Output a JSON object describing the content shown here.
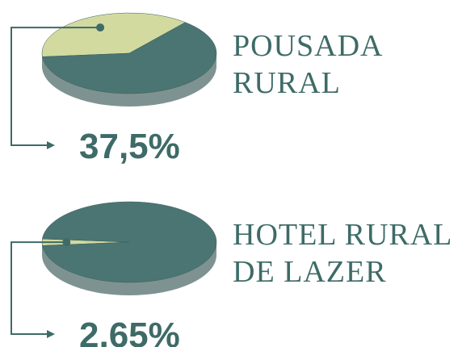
{
  "chart_data": [
    {
      "type": "pie",
      "title": "POUSADA RURAL",
      "values": [
        37.5,
        62.5
      ],
      "value_labels": [
        "37,5%",
        null
      ],
      "colors": [
        "#d2daa0",
        "#4b7572"
      ]
    },
    {
      "type": "pie",
      "title": "HOTEL RURAL DE LAZER",
      "values": [
        2.65,
        97.35
      ],
      "value_labels": [
        "2,65%",
        null
      ],
      "colors": [
        "#d2daa0",
        "#4b7572"
      ]
    }
  ]
}
